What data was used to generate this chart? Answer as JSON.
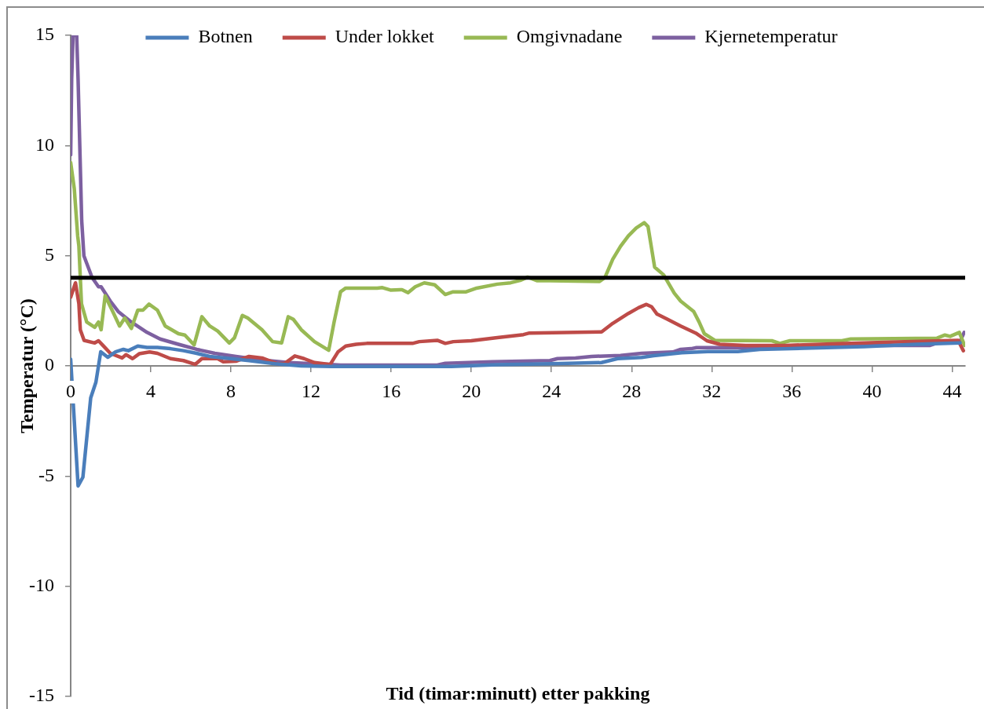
{
  "chart_data": {
    "type": "line",
    "xlabel": "Tid (timar:minutt) etter pakking",
    "ylabel": "Temperatur (°C)",
    "xlim": [
      0,
      44.65
    ],
    "xticks": [
      0,
      4,
      8,
      12,
      16,
      20,
      24,
      28,
      32,
      36,
      40,
      44
    ],
    "ylim": [
      -15,
      15
    ],
    "yticks": [
      -15,
      -10,
      -5,
      0,
      5,
      10,
      15
    ],
    "legend": "top",
    "marker": "none",
    "ref_lines": [
      {
        "axis": "y",
        "value": 4,
        "color": "#000000"
      }
    ],
    "series": [
      {
        "name": "Botnen",
        "color": "#4a7ebb",
        "x": [
          0,
          0.37,
          0.61,
          1.0,
          1.26,
          1.5,
          1.85,
          2.24,
          2.63,
          2.88,
          3.35,
          3.81,
          4.33,
          4.98,
          5.63,
          6.29,
          6.94,
          7.98,
          8.9,
          10.2,
          11.5,
          13,
          16,
          19,
          21.3,
          24,
          26.5,
          27.3,
          28.5,
          29.1,
          30.5,
          31.8,
          33.3,
          34.4,
          37,
          39.6,
          42.2,
          44.4
        ],
        "values": [
          0.3,
          -5.45,
          -5.05,
          -1.45,
          -0.74,
          0.64,
          0.39,
          0.64,
          0.75,
          0.69,
          0.9,
          0.84,
          0.84,
          0.78,
          0.69,
          0.57,
          0.43,
          0.33,
          0.24,
          0.1,
          0.0,
          -0.03,
          -0.03,
          -0.03,
          0.05,
          0.1,
          0.15,
          0.33,
          0.38,
          0.46,
          0.6,
          0.65,
          0.65,
          0.75,
          0.81,
          0.87,
          0.98,
          1.04
        ]
      },
      {
        "name": "Under lokket",
        "color": "#be4b48",
        "x": [
          0,
          0.24,
          0.41,
          0.48,
          0.67,
          1.2,
          1.39,
          1.59,
          1.98,
          2.57,
          2.76,
          3.09,
          3.42,
          3.94,
          4.33,
          4.98,
          5.63,
          6.22,
          6.55,
          7.34,
          7.6,
          8.25,
          8.9,
          9.55,
          10.3,
          10.7,
          11.19,
          11.65,
          12.17,
          12.95,
          13.34,
          13.73,
          14.25,
          14.78,
          17.06,
          17.4,
          18.3,
          18.7,
          19.1,
          20.0,
          21.3,
          22.6,
          22.9,
          26.5,
          27.06,
          27.84,
          28.35,
          28.74,
          29.0,
          29.27,
          29.8,
          30.45,
          31.2,
          31.76,
          32.4,
          33.7,
          35.7,
          38.3,
          40.9,
          44.3,
          44.56
        ],
        "values": [
          3.12,
          3.77,
          2.82,
          1.64,
          1.16,
          1.04,
          1.14,
          0.95,
          0.57,
          0.36,
          0.51,
          0.33,
          0.55,
          0.63,
          0.57,
          0.33,
          0.24,
          0.07,
          0.33,
          0.33,
          0.19,
          0.21,
          0.43,
          0.36,
          0.1,
          0.12,
          0.45,
          0.33,
          0.15,
          0.06,
          0.63,
          0.9,
          0.98,
          1.02,
          1.02,
          1.1,
          1.16,
          1.02,
          1.1,
          1.14,
          1.28,
          1.42,
          1.49,
          1.54,
          1.93,
          2.38,
          2.64,
          2.79,
          2.68,
          2.35,
          2.11,
          1.81,
          1.49,
          1.14,
          0.98,
          0.93,
          0.93,
          1.01,
          1.08,
          1.16,
          0.69
        ]
      },
      {
        "name": "Omgivnadane",
        "color": "#98b954",
        "x": [
          0,
          0.18,
          0.35,
          0.41,
          0.54,
          0.8,
          1.2,
          1.39,
          1.52,
          1.72,
          2.1,
          2.44,
          2.7,
          3.03,
          3.35,
          3.61,
          3.91,
          4.33,
          4.72,
          5.38,
          5.7,
          6.16,
          6.55,
          6.94,
          7.34,
          7.92,
          8.18,
          8.57,
          8.84,
          9.55,
          10.08,
          10.53,
          10.86,
          11.12,
          11.51,
          12.17,
          12.88,
          13.15,
          13.47,
          13.73,
          15.3,
          15.56,
          15.96,
          16.54,
          16.84,
          17.2,
          17.65,
          18.17,
          18.7,
          19.09,
          19.74,
          20.27,
          21.3,
          21.96,
          22.48,
          22.81,
          23.27,
          23.92,
          26.4,
          26.67,
          27.06,
          27.45,
          27.84,
          28.23,
          28.63,
          28.82,
          29.15,
          29.6,
          30.13,
          30.45,
          31.1,
          31.37,
          31.63,
          32.15,
          35.0,
          35.4,
          35.9,
          38.5,
          38.94,
          43.25,
          43.64,
          43.9,
          44.36,
          44.62
        ],
        "values": [
          9.23,
          8.04,
          5.9,
          5.43,
          2.82,
          1.99,
          1.75,
          1.99,
          1.64,
          3.18,
          2.47,
          1.81,
          2.17,
          1.7,
          2.53,
          2.53,
          2.8,
          2.53,
          1.81,
          1.46,
          1.4,
          0.95,
          2.23,
          1.81,
          1.58,
          1.04,
          1.28,
          2.29,
          2.17,
          1.64,
          1.1,
          1.04,
          2.23,
          2.11,
          1.64,
          1.1,
          0.71,
          1.99,
          3.36,
          3.53,
          3.53,
          3.55,
          3.44,
          3.46,
          3.32,
          3.59,
          3.77,
          3.68,
          3.24,
          3.36,
          3.36,
          3.53,
          3.71,
          3.77,
          3.89,
          4.03,
          3.87,
          3.87,
          3.83,
          4.01,
          4.84,
          5.43,
          5.9,
          6.26,
          6.5,
          6.32,
          4.48,
          4.13,
          3.3,
          2.94,
          2.47,
          1.99,
          1.46,
          1.16,
          1.14,
          1.02,
          1.14,
          1.14,
          1.22,
          1.26,
          1.4,
          1.34,
          1.52,
          0.93
        ]
      },
      {
        "name": "Kjernetemperatur",
        "color": "#7d60a0",
        "x": [
          0,
          0.05,
          0.12,
          0.3,
          0.37,
          0.55,
          0.66,
          0.8,
          1.07,
          1.39,
          1.52,
          1.98,
          2.37,
          3.03,
          3.81,
          4.46,
          5.38,
          6.29,
          7.2,
          8.25,
          9.55,
          10.86,
          12.82,
          13.47,
          18.3,
          18.7,
          21.05,
          23.92,
          24.3,
          25.2,
          26.0,
          27.45,
          28.5,
          29.15,
          30.06,
          30.45,
          30.97,
          31.24,
          33.7,
          35.0,
          37.9,
          42.9,
          43.25,
          44.36,
          44.6
        ],
        "values": [
          9.58,
          13.02,
          15,
          15,
          13.0,
          6.6,
          5.0,
          4.66,
          4.01,
          3.59,
          3.59,
          2.94,
          2.47,
          1.99,
          1.52,
          1.22,
          0.98,
          0.75,
          0.57,
          0.43,
          0.27,
          0.15,
          0.07,
          0.04,
          0.04,
          0.12,
          0.19,
          0.24,
          0.33,
          0.36,
          0.43,
          0.47,
          0.57,
          0.6,
          0.63,
          0.75,
          0.78,
          0.83,
          0.83,
          0.87,
          0.93,
          0.93,
          1.04,
          1.04,
          1.52
        ]
      }
    ]
  }
}
